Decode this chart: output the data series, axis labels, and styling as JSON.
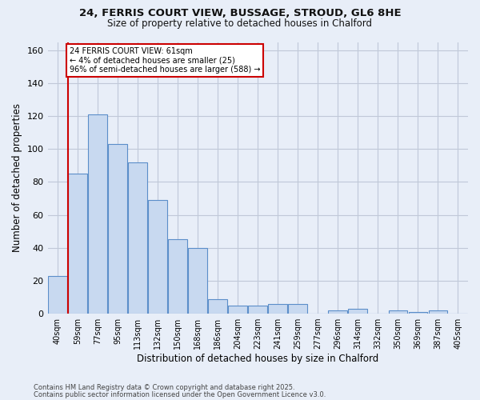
{
  "title_line1": "24, FERRIS COURT VIEW, BUSSAGE, STROUD, GL6 8HE",
  "title_line2": "Size of property relative to detached houses in Chalford",
  "xlabel": "Distribution of detached houses by size in Chalford",
  "ylabel": "Number of detached properties",
  "categories": [
    "40sqm",
    "59sqm",
    "77sqm",
    "95sqm",
    "113sqm",
    "132sqm",
    "150sqm",
    "168sqm",
    "186sqm",
    "204sqm",
    "223sqm",
    "241sqm",
    "259sqm",
    "277sqm",
    "296sqm",
    "314sqm",
    "332sqm",
    "350sqm",
    "369sqm",
    "387sqm",
    "405sqm"
  ],
  "values": [
    23,
    85,
    121,
    103,
    92,
    69,
    45,
    40,
    9,
    5,
    5,
    6,
    6,
    0,
    2,
    3,
    0,
    2,
    1,
    2,
    0
  ],
  "bar_color": "#c8d9f0",
  "bar_edge_color": "#5b8ec9",
  "grid_color": "#c0c8d8",
  "background_color": "#e8eef8",
  "redline_x": 0.5,
  "annotation_text": "24 FERRIS COURT VIEW: 61sqm\n← 4% of detached houses are smaller (25)\n96% of semi-detached houses are larger (588) →",
  "annotation_box_color": "#ffffff",
  "annotation_box_edge": "#cc0000",
  "annotation_text_color": "#000000",
  "redline_color": "#cc0000",
  "ylim": [
    0,
    165
  ],
  "yticks": [
    0,
    20,
    40,
    60,
    80,
    100,
    120,
    140,
    160
  ],
  "footer_line1": "Contains HM Land Registry data © Crown copyright and database right 2025.",
  "footer_line2": "Contains public sector information licensed under the Open Government Licence v3.0."
}
